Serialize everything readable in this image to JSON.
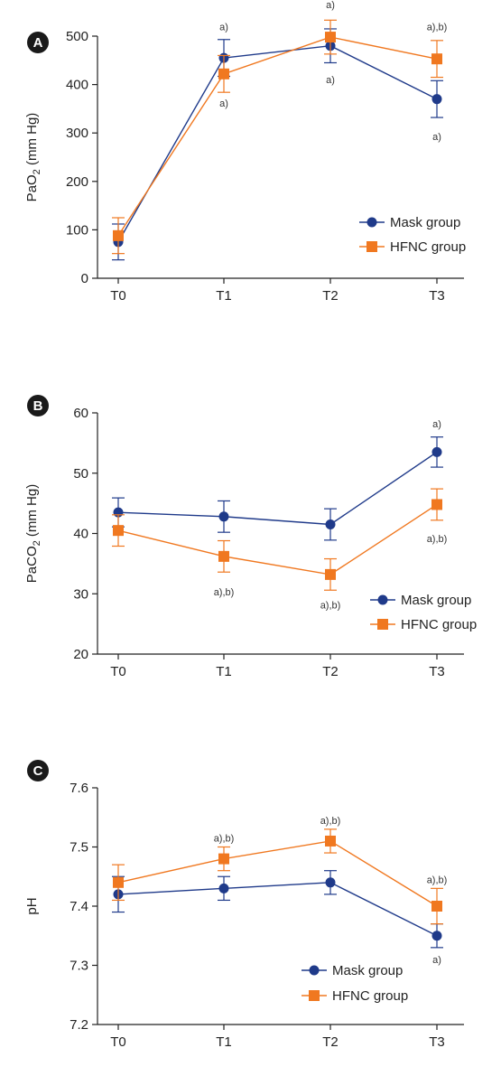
{
  "chart_data": [
    {
      "panel": "A",
      "type": "line",
      "categories": [
        "T0",
        "T1",
        "T2",
        "T3"
      ],
      "ylabel": "PaO",
      "ylabel_sub": "2",
      "ylabel_unit": " (mm Hg)",
      "ylim": [
        0,
        500
      ],
      "yticks": [
        0,
        100,
        200,
        300,
        400,
        500
      ],
      "legend": "center-right",
      "grid": false,
      "series": [
        {
          "name": "Mask group",
          "marker": "circle",
          "color": "#1f3a8a",
          "values": [
            75,
            455,
            480,
            370
          ],
          "err": [
            37,
            38,
            35,
            38
          ]
        },
        {
          "name": "HFNC group",
          "marker": "square",
          "color": "#f07820",
          "values": [
            88,
            422,
            498,
            453
          ],
          "err": [
            37,
            38,
            35,
            38
          ]
        }
      ],
      "annotations": [
        {
          "x": "T1",
          "y": 520,
          "text": "a)"
        },
        {
          "x": "T1",
          "y": 362,
          "text": "a)"
        },
        {
          "x": "T2",
          "y": 565,
          "text": "a)"
        },
        {
          "x": "T2",
          "y": 410,
          "text": "a)"
        },
        {
          "x": "T3",
          "y": 520,
          "text": "a),b)"
        },
        {
          "x": "T3",
          "y": 293,
          "text": "a)"
        }
      ]
    },
    {
      "panel": "B",
      "type": "line",
      "categories": [
        "T0",
        "T1",
        "T2",
        "T3"
      ],
      "ylabel": "PaCO",
      "ylabel_sub": "2",
      "ylabel_unit": " (mm Hg)",
      "ylim": [
        20,
        60
      ],
      "yticks": [
        20,
        30,
        40,
        50,
        60
      ],
      "legend": "bottom-right",
      "grid": false,
      "series": [
        {
          "name": "Mask group",
          "marker": "circle",
          "color": "#1f3a8a",
          "values": [
            43.5,
            42.8,
            41.5,
            53.5
          ],
          "err": [
            2.4,
            2.6,
            2.6,
            2.5
          ]
        },
        {
          "name": "HFNC group",
          "marker": "square",
          "color": "#f07820",
          "values": [
            40.5,
            36.2,
            33.2,
            44.8
          ],
          "err": [
            2.6,
            2.6,
            2.6,
            2.6
          ]
        }
      ],
      "annotations": [
        {
          "x": "T1",
          "y": 30.3,
          "text": "a),b)"
        },
        {
          "x": "T2",
          "y": 28.2,
          "text": "a),b)"
        },
        {
          "x": "T3",
          "y": 58.2,
          "text": "a)"
        },
        {
          "x": "T3",
          "y": 39.2,
          "text": "a),b)"
        }
      ]
    },
    {
      "panel": "C",
      "type": "line",
      "categories": [
        "T0",
        "T1",
        "T2",
        "T3"
      ],
      "ylabel": "pH",
      "ylabel_sub": "",
      "ylabel_unit": "",
      "ylim": [
        7.2,
        7.6
      ],
      "yticks": [
        "7.2",
        "7.3",
        "7.4",
        "7.5",
        "7.6"
      ],
      "legend": "bottom-right",
      "grid": false,
      "series": [
        {
          "name": "Mask group",
          "marker": "circle",
          "color": "#1f3a8a",
          "values": [
            7.42,
            7.43,
            7.44,
            7.35
          ],
          "err": [
            0.03,
            0.02,
            0.02,
            0.02
          ]
        },
        {
          "name": "HFNC group",
          "marker": "square",
          "color": "#f07820",
          "values": [
            7.44,
            7.48,
            7.51,
            7.4
          ],
          "err": [
            0.03,
            0.02,
            0.02,
            0.03
          ]
        }
      ],
      "annotations": [
        {
          "x": "T1",
          "y": 7.515,
          "text": "a),b)"
        },
        {
          "x": "T2",
          "y": 7.545,
          "text": "a),b)"
        },
        {
          "x": "T3",
          "y": 7.445,
          "text": "a),b)"
        },
        {
          "x": "T3",
          "y": 7.31,
          "text": "a)"
        }
      ]
    }
  ],
  "colors": {
    "mask": "#1f3a8a",
    "hfnc": "#f07820",
    "badge": "#1a1a1a"
  }
}
